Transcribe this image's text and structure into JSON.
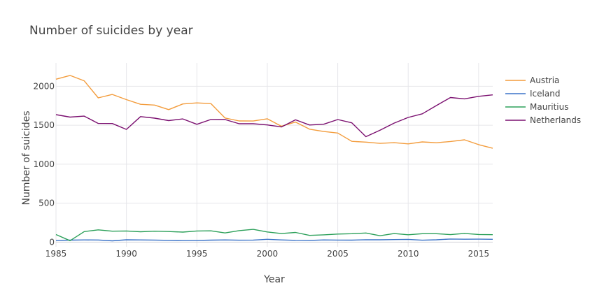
{
  "chart_data": {
    "type": "line",
    "title": "Number of suicides by year",
    "xlabel": "Year",
    "ylabel": "Number of suicides",
    "xlim": [
      1985,
      2016
    ],
    "ylim": [
      -60,
      2300
    ],
    "x_ticks": [
      1985,
      1990,
      1995,
      2000,
      2005,
      2010,
      2015
    ],
    "y_ticks": [
      0,
      500,
      1000,
      1500,
      2000
    ],
    "grid": true,
    "legend_position": "right",
    "x": [
      1985,
      1986,
      1987,
      1988,
      1989,
      1990,
      1991,
      1992,
      1993,
      1994,
      1995,
      1996,
      1997,
      1998,
      1999,
      2000,
      2001,
      2002,
      2003,
      2004,
      2005,
      2006,
      2007,
      2008,
      2009,
      2010,
      2011,
      2012,
      2013,
      2014,
      2015,
      2016
    ],
    "series": [
      {
        "name": "Austria",
        "color": "#f39c3c",
        "values": [
          2091,
          2139,
          2070,
          1851,
          1895,
          1829,
          1769,
          1759,
          1701,
          1773,
          1787,
          1778,
          1593,
          1555,
          1554,
          1583,
          1487,
          1541,
          1449,
          1420,
          1400,
          1293,
          1283,
          1267,
          1276,
          1261,
          1286,
          1275,
          1291,
          1313,
          1251,
          1204
        ]
      },
      {
        "name": "Iceland",
        "color": "#3b73c8",
        "values": [
          22,
          25,
          28,
          27,
          16,
          30,
          28,
          26,
          23,
          20,
          22,
          25,
          28,
          24,
          26,
          36,
          28,
          23,
          22,
          28,
          26,
          25,
          31,
          30,
          32,
          35,
          24,
          30,
          40,
          37,
          38,
          36
        ]
      },
      {
        "name": "Mauritius",
        "color": "#2ca05a",
        "values": [
          97,
          18,
          135,
          157,
          140,
          143,
          133,
          140,
          136,
          128,
          143,
          145,
          118,
          147,
          163,
          130,
          110,
          124,
          86,
          93,
          103,
          108,
          117,
          82,
          110,
          94,
          108,
          108,
          96,
          111,
          98,
          95
        ]
      },
      {
        "name": "Netherlands",
        "color": "#7b1070",
        "values": [
          1636,
          1605,
          1617,
          1523,
          1522,
          1447,
          1611,
          1591,
          1560,
          1581,
          1512,
          1574,
          1573,
          1519,
          1519,
          1504,
          1478,
          1570,
          1503,
          1513,
          1573,
          1531,
          1353,
          1437,
          1527,
          1600,
          1647,
          1753,
          1856,
          1839,
          1871,
          1890
        ]
      }
    ]
  }
}
